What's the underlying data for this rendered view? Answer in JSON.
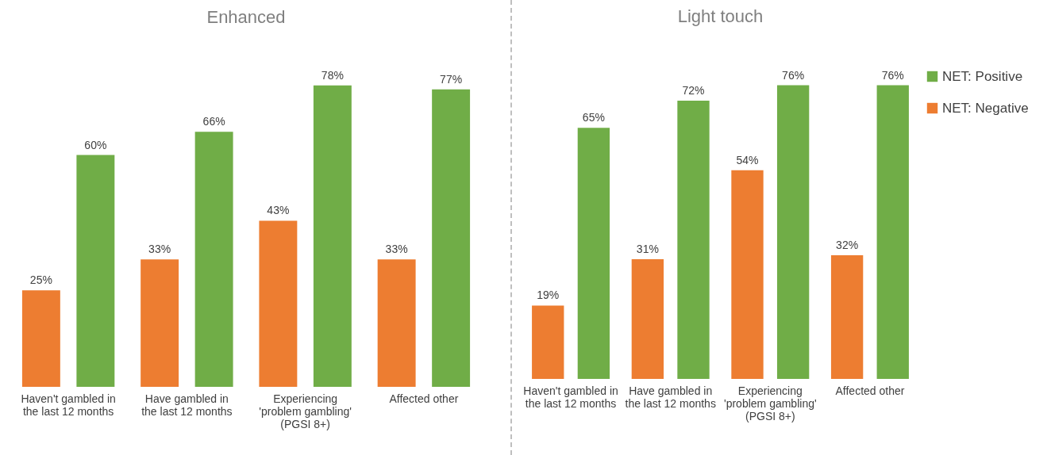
{
  "chart_data": [
    {
      "type": "bar",
      "title": "Enhanced",
      "categories": [
        "Haven't gambled in the last 12 months",
        "Have gambled in the last 12 months",
        "Experiencing 'problem gambling' (PGSI 8+)",
        "Affected other"
      ],
      "series": [
        {
          "color": "#ed7d31",
          "values": [
            25,
            33,
            43,
            33
          ],
          "value_labels": [
            "25%",
            "33%",
            "43%",
            "33%"
          ]
        },
        {
          "color": "#70ad47",
          "values": [
            60,
            66,
            78,
            77
          ],
          "value_labels": [
            "60%",
            "66%",
            "78%",
            "77%"
          ]
        }
      ],
      "legend": false
    },
    {
      "type": "bar",
      "title": "Light touch",
      "categories": [
        "Haven't gambled in the last 12 months",
        "Have gambled in the last 12 months",
        "Experiencing 'problem gambling' (PGSI 8+)",
        "Affected other"
      ],
      "series": [
        {
          "name": "NET: Negative",
          "color": "#ed7d31",
          "values": [
            19,
            31,
            54,
            32
          ],
          "value_labels": [
            "19%",
            "31%",
            "54%",
            "32%"
          ]
        },
        {
          "name": "NET: Positive",
          "color": "#70ad47",
          "values": [
            65,
            72,
            76,
            76
          ],
          "value_labels": [
            "65%",
            "72%",
            "76%",
            "76%"
          ]
        }
      ],
      "legend": "top right"
    }
  ]
}
